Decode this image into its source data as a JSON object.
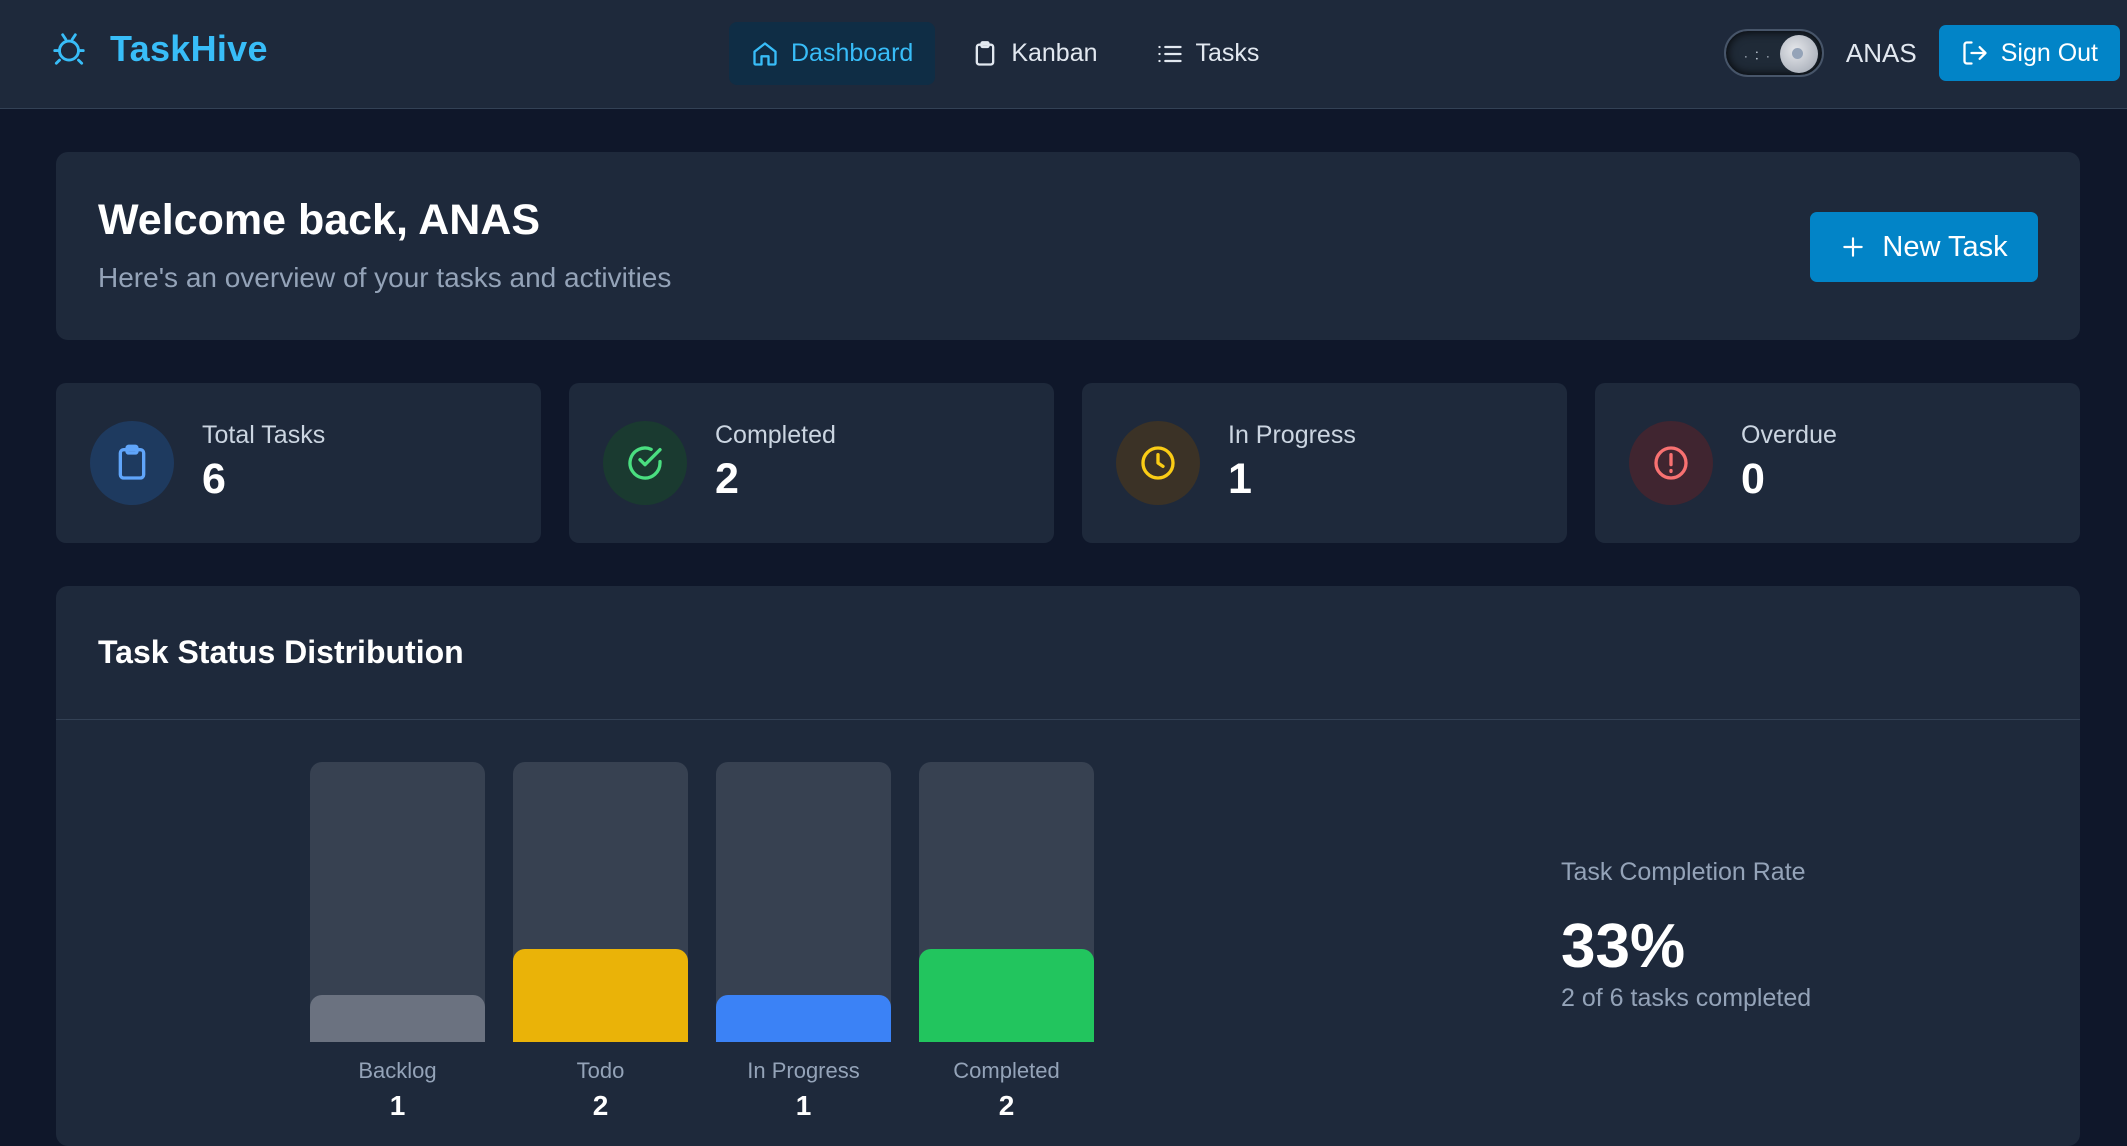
{
  "app": {
    "name": "TaskHive"
  },
  "nav": {
    "links": [
      {
        "label": "Dashboard",
        "icon": "home-icon",
        "active": true
      },
      {
        "label": "Kanban",
        "icon": "clipboard-icon",
        "active": false
      },
      {
        "label": "Tasks",
        "icon": "list-icon",
        "active": false
      }
    ],
    "user": "ANAS",
    "signout_label": "Sign Out"
  },
  "welcome": {
    "title": "Welcome back, ANAS",
    "subtitle": "Here's an overview of your tasks and activities",
    "new_task_label": "New Task"
  },
  "stats": [
    {
      "label": "Total Tasks",
      "value": "6",
      "icon": "clipboard-icon",
      "color": "#60a5fa",
      "bg": "#1e3a5f"
    },
    {
      "label": "Completed",
      "value": "2",
      "icon": "check-circle-icon",
      "color": "#4ade80",
      "bg": "#1a3a30"
    },
    {
      "label": "In Progress",
      "value": "1",
      "icon": "clock-icon",
      "color": "#facc15",
      "bg": "#3b3226"
    },
    {
      "label": "Overdue",
      "value": "0",
      "icon": "alert-circle-icon",
      "color": "#f87171",
      "bg": "#402530"
    }
  ],
  "chart_data": {
    "type": "bar",
    "title": "Task Status Distribution",
    "categories": [
      "Backlog",
      "Todo",
      "In Progress",
      "Completed"
    ],
    "values": [
      1,
      2,
      1,
      2
    ],
    "colors": [
      "#6b7280",
      "#eab308",
      "#3b82f6",
      "#22c55e"
    ],
    "ylim": [
      0,
      6
    ],
    "xlabel": "",
    "ylabel": ""
  },
  "completion": {
    "label": "Task Completion Rate",
    "value": "33%",
    "detail": "2 of 6 tasks completed"
  }
}
